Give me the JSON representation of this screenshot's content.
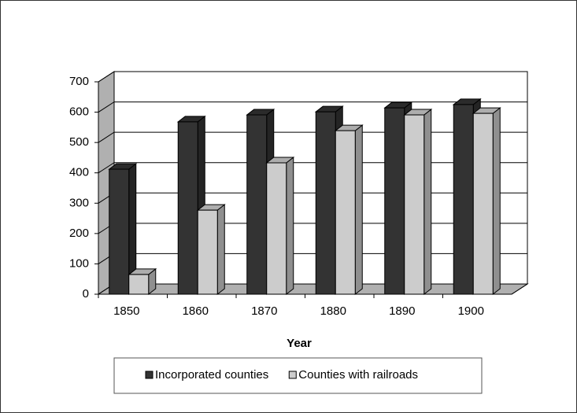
{
  "chart_data": {
    "type": "bar3d",
    "x_label": "Year",
    "categories": [
      "1850",
      "1860",
      "1870",
      "1880",
      "1890",
      "1900"
    ],
    "series": [
      {
        "name": "Incorporated counties",
        "color": "#333333",
        "values": [
          412,
          568,
          591,
          601,
          614,
          625
        ]
      },
      {
        "name": "Counties with railroads",
        "color": "#cccccc",
        "values": [
          65,
          277,
          433,
          539,
          591,
          596
        ]
      }
    ],
    "ylim": [
      0,
      700
    ],
    "yticks": [
      0,
      100,
      200,
      300,
      400,
      500,
      600,
      700
    ],
    "grid": true,
    "legend": "bottom"
  }
}
